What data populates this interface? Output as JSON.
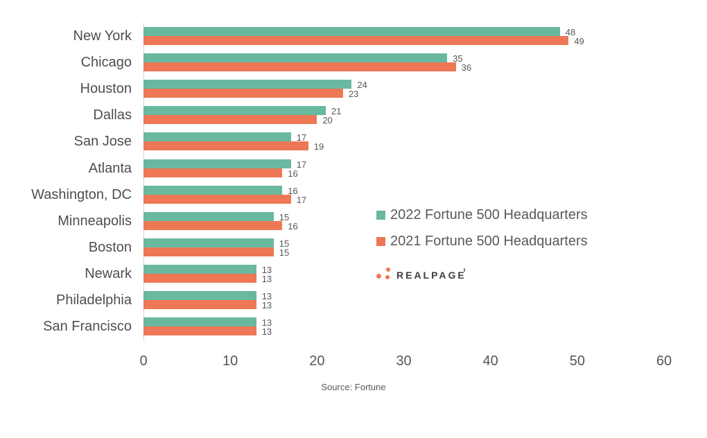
{
  "chart_data": {
    "type": "bar",
    "orientation": "horizontal",
    "title": "",
    "xlabel": "",
    "ylabel": "",
    "categories": [
      "New York",
      "Chicago",
      "Houston",
      "Dallas",
      "San Jose",
      "Atlanta",
      "Washington, DC",
      "Minneapolis",
      "Boston",
      "Newark",
      "Philadelphia",
      "San Francisco"
    ],
    "series": [
      {
        "name": "2022 Fortune 500 Headquarters",
        "color": "#69b8a0",
        "values": [
          48,
          35,
          24,
          21,
          17,
          17,
          16,
          15,
          15,
          13,
          13,
          13
        ]
      },
      {
        "name": "2021 Fortune 500 Headquarters",
        "color": "#ee7755",
        "values": [
          49,
          36,
          23,
          20,
          19,
          16,
          17,
          16,
          15,
          13,
          13,
          13
        ]
      }
    ],
    "xlim": [
      0,
      60
    ],
    "xticks": [
      0,
      10,
      20,
      30,
      40,
      50,
      60
    ],
    "grid": false,
    "legend_position": "right-middle",
    "data_labels": true
  },
  "branding": {
    "logo_text": "REALPAGE",
    "logo_mark": "three-dots",
    "dot_color": "#ee7755",
    "text_color": "#3d3d3d"
  },
  "source_note": "Source: Fortune"
}
